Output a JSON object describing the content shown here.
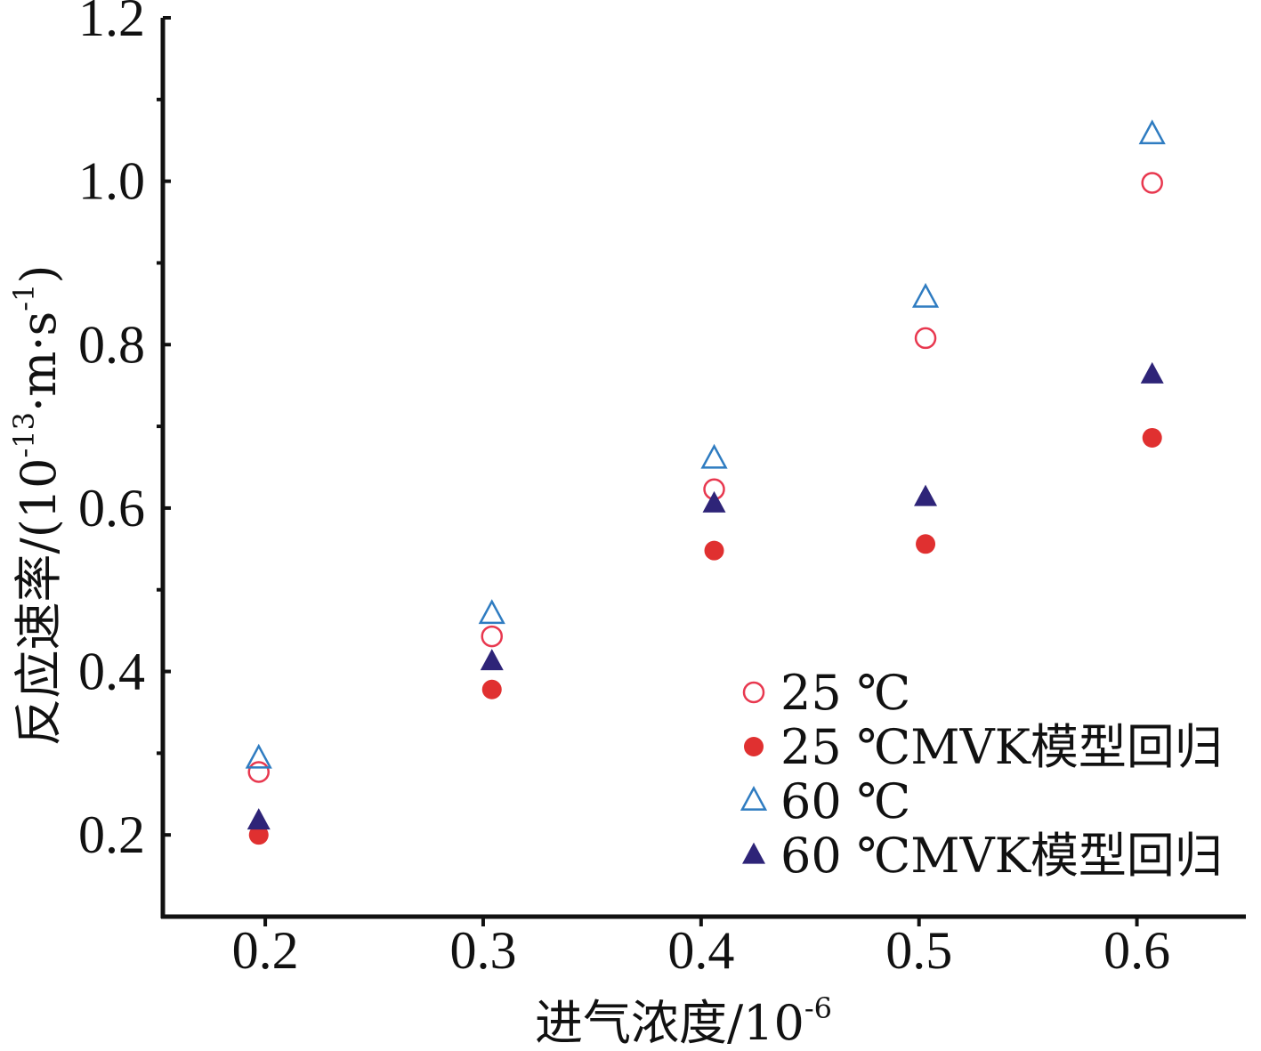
{
  "chart_data": {
    "type": "scatter",
    "title": "",
    "xlabel": "进气浓度/10",
    "xlabel_sup": "-6",
    "ylabel": "反应速率/(10",
    "ylabel_sup1": "-13",
    "ylabel_mid": "·m·s",
    "ylabel_sup2": "-1",
    "ylabel_end": ")",
    "xlim": [
      0.153,
      0.65
    ],
    "ylim": [
      0.1,
      1.2
    ],
    "x_ticks": [
      "0.2",
      "0.3",
      "0.4",
      "0.5",
      "0.6"
    ],
    "y_ticks": [
      "0.2",
      "0.4",
      "0.6",
      "0.8",
      "1.0",
      "1.2"
    ],
    "grid": false,
    "legend_position": "bottom-right",
    "series": [
      {
        "name": "25 ℃",
        "marker": "circle-open",
        "color": "#e8384f",
        "points": [
          [
            0.197,
            0.277
          ],
          [
            0.304,
            0.443
          ],
          [
            0.406,
            0.623
          ],
          [
            0.503,
            0.808
          ],
          [
            0.607,
            0.998
          ]
        ]
      },
      {
        "name": "25 ℃MVK模型回归",
        "marker": "circle-filled",
        "color": "#e03030",
        "points": [
          [
            0.197,
            0.2
          ],
          [
            0.304,
            0.378
          ],
          [
            0.406,
            0.548
          ],
          [
            0.503,
            0.556
          ],
          [
            0.607,
            0.686
          ]
        ]
      },
      {
        "name": "60 ℃",
        "marker": "triangle-open",
        "color": "#2f7cc1",
        "points": [
          [
            0.197,
            0.293
          ],
          [
            0.304,
            0.47
          ],
          [
            0.406,
            0.66
          ],
          [
            0.503,
            0.857
          ],
          [
            0.607,
            1.057
          ]
        ]
      },
      {
        "name": "60 ℃MVK模型回归",
        "marker": "triangle-filled",
        "color": "#2e2478",
        "points": [
          [
            0.197,
            0.217
          ],
          [
            0.304,
            0.412
          ],
          [
            0.406,
            0.605
          ],
          [
            0.503,
            0.613
          ],
          [
            0.607,
            0.763
          ]
        ]
      }
    ]
  }
}
